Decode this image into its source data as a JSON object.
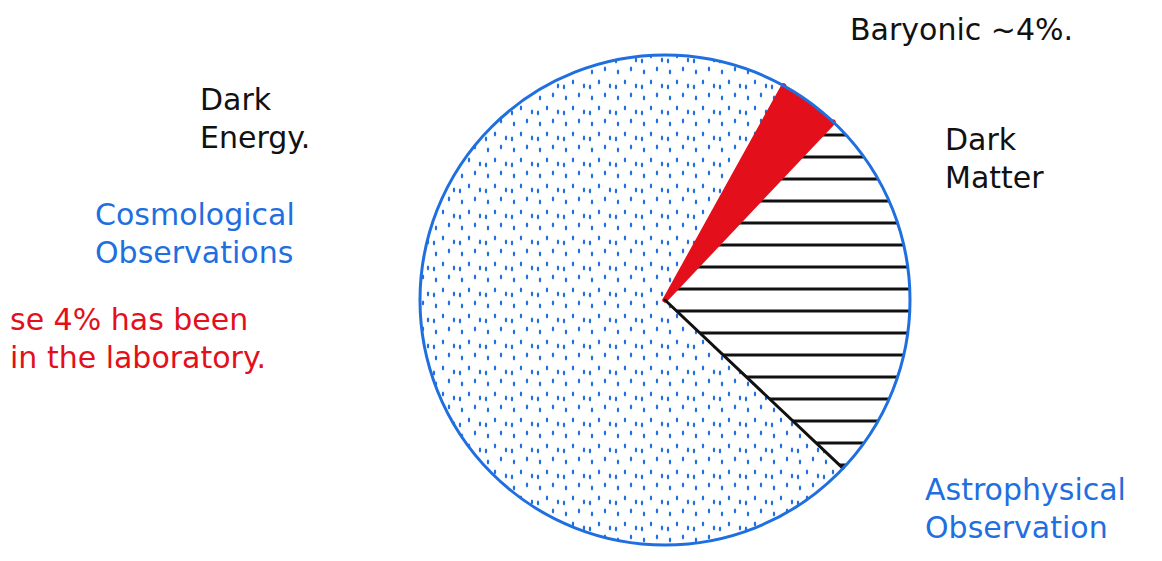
{
  "chart_data": {
    "type": "pie",
    "labels": [
      [
        "Baryonic ~4%."
      ],
      [
        "Dark",
        "Matter"
      ],
      [
        "Dark",
        "Energy."
      ]
    ],
    "values": [
      4,
      25,
      71
    ],
    "colors": [
      "#e3101c",
      "#111111",
      "#1f6fe0"
    ],
    "annotations": [
      {
        "text": [
          "Cosmological",
          "Observations"
        ],
        "color": "#1f6fe0"
      },
      {
        "text": [
          "Astrophysical",
          "Observation"
        ],
        "color": "#1f6fe0"
      },
      {
        "text": [
          "se 4% has been",
          "in the laboratory."
        ],
        "color": "#e3101c"
      }
    ]
  }
}
